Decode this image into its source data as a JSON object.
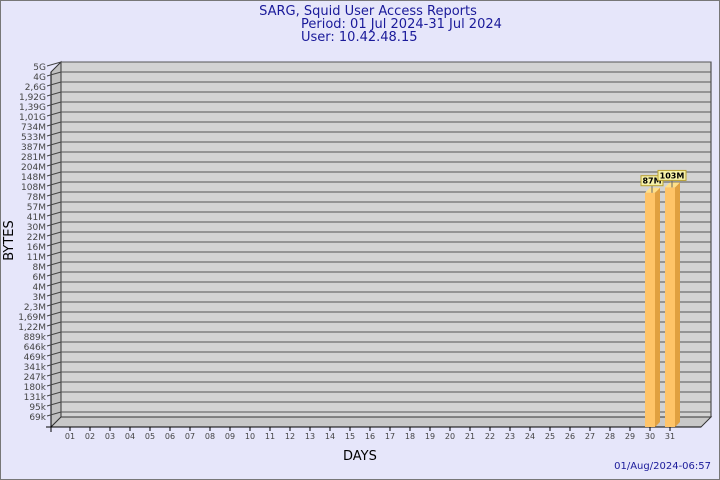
{
  "title": "SARG, Squid User Access Reports",
  "period": "Period: 01 Jul 2024-31 Jul 2024",
  "user": "User: 10.42.48.15",
  "timestamp": "01/Aug/2024-06:57",
  "chart_data": {
    "type": "bar",
    "xlabel": "DAYS",
    "ylabel": "BYTES",
    "y_scale": "log",
    "y_tick_labels": [
      "5G",
      "4G",
      "2,6G",
      "1,92G",
      "1,39G",
      "1,01G",
      "734M",
      "533M",
      "387M",
      "281M",
      "204M",
      "148M",
      "108M",
      "78M",
      "57M",
      "41M",
      "30M",
      "22M",
      "16M",
      "11M",
      "8M",
      "6M",
      "4M",
      "3M",
      "2,3M",
      "1,69M",
      "1,22M",
      "889k",
      "646k",
      "469k",
      "341k",
      "247k",
      "180k",
      "131k",
      "95k",
      "69k"
    ],
    "categories": [
      "01",
      "02",
      "03",
      "04",
      "05",
      "06",
      "07",
      "08",
      "09",
      "10",
      "11",
      "12",
      "13",
      "14",
      "15",
      "16",
      "17",
      "18",
      "19",
      "20",
      "21",
      "22",
      "23",
      "24",
      "25",
      "26",
      "27",
      "28",
      "29",
      "30",
      "31"
    ],
    "values": [
      null,
      null,
      null,
      null,
      null,
      null,
      null,
      null,
      null,
      null,
      null,
      null,
      null,
      null,
      null,
      null,
      null,
      null,
      null,
      null,
      null,
      null,
      null,
      null,
      null,
      null,
      null,
      null,
      null,
      87000000,
      103000000
    ],
    "data_labels": {
      "30": "87M",
      "31": "103M"
    },
    "grid": true,
    "colors": {
      "bar": "#ffc468",
      "bar_side": "#e0a040",
      "wall": "#d3d3d3",
      "title": "#1a1a9a"
    }
  }
}
